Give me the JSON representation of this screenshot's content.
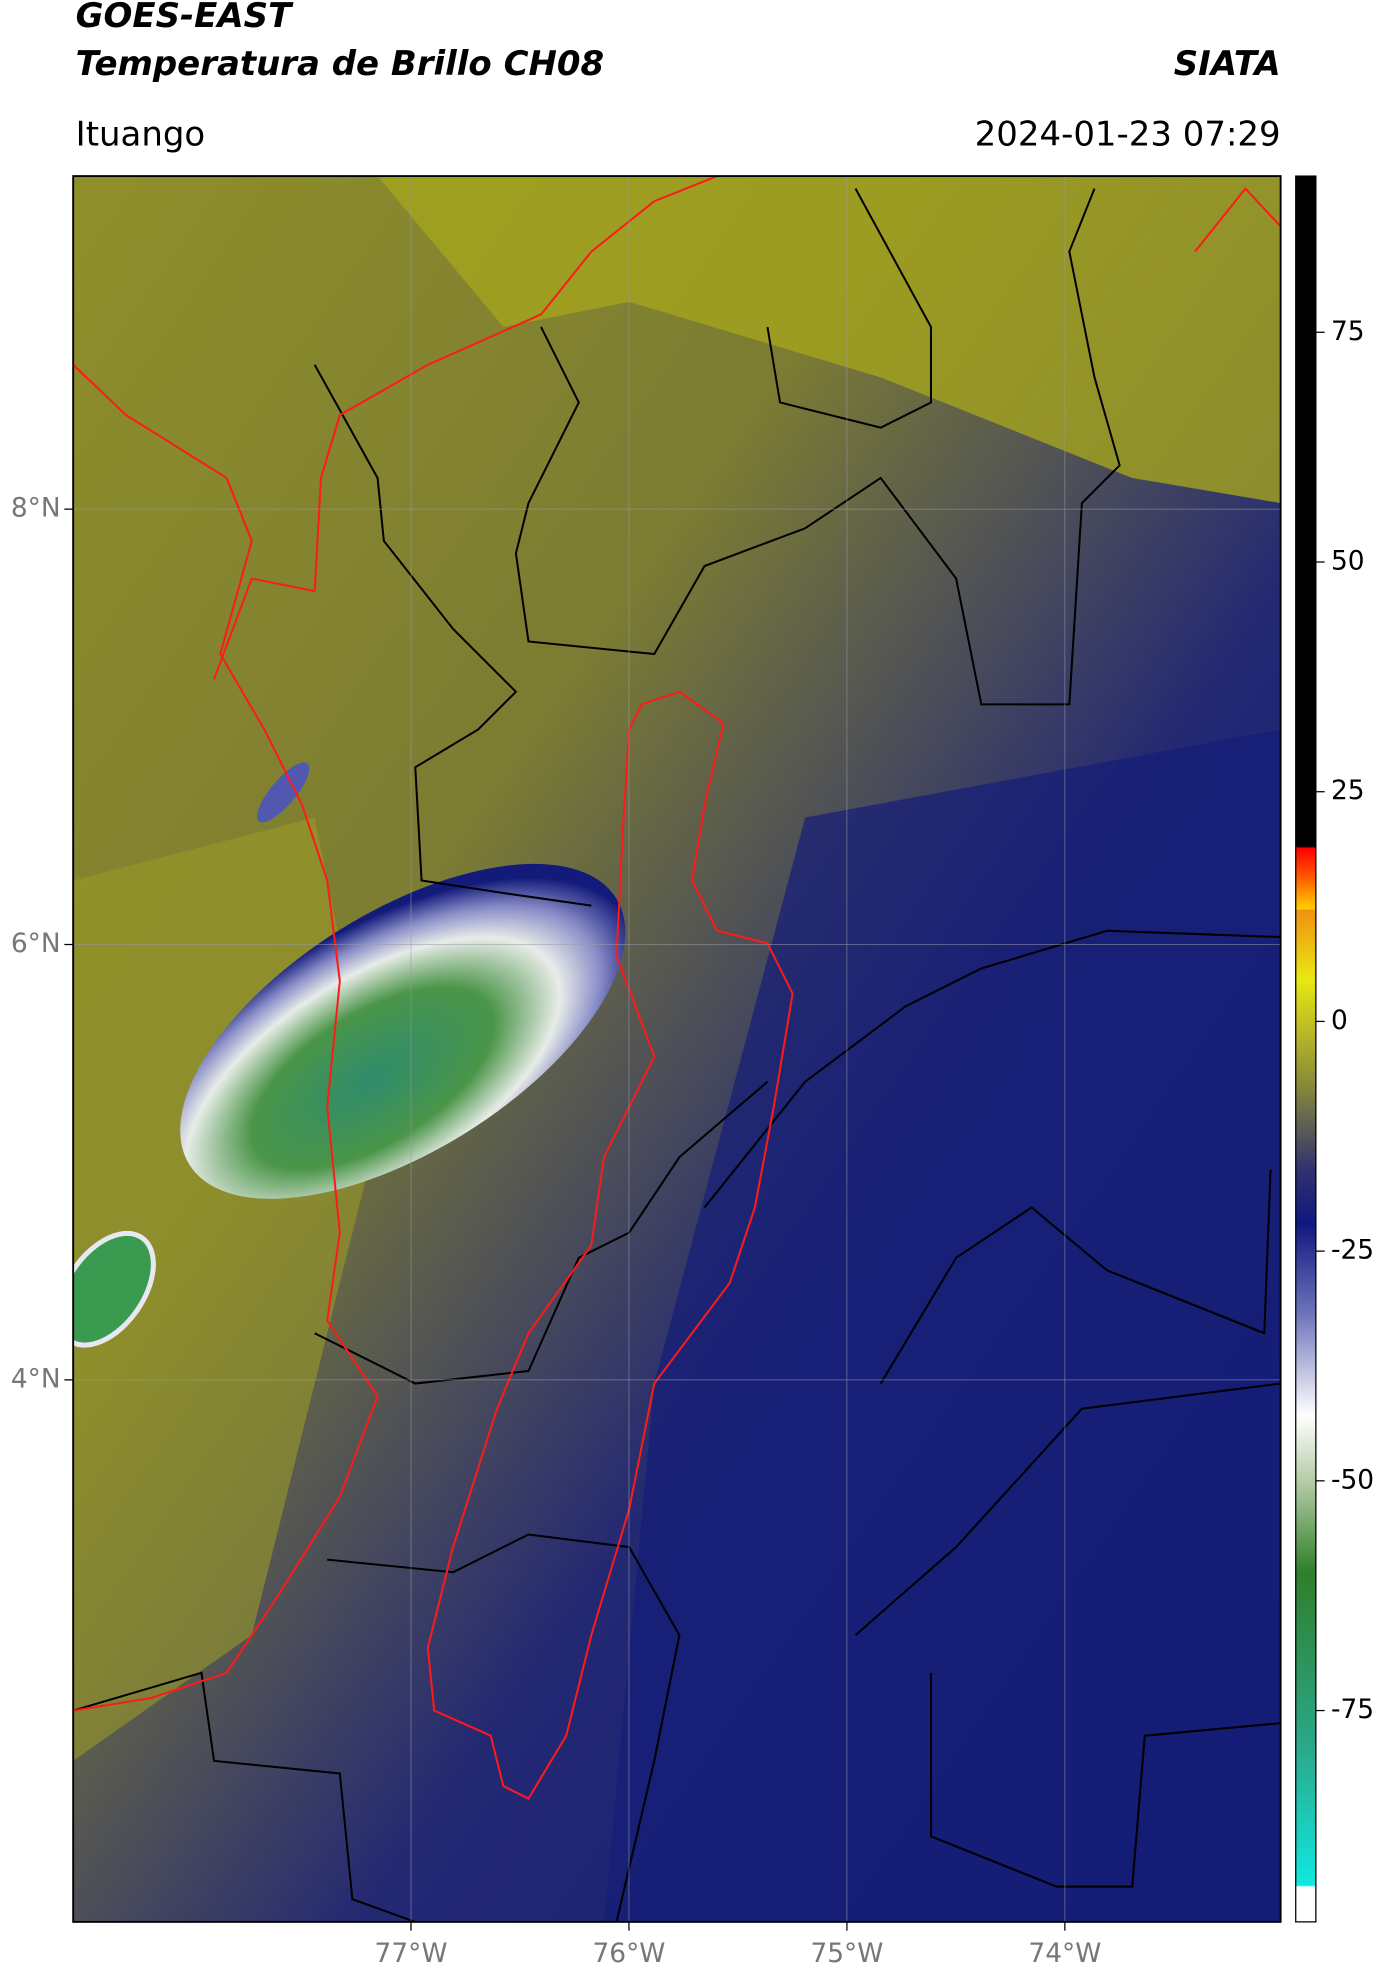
{
  "header": {
    "title": "GOES-EAST",
    "subtitle": "Temperatura de Brillo CH08",
    "brand": "SIATA",
    "location": "Ituango",
    "datetime": "2024-01-23 07:29"
  },
  "chart_data": {
    "type": "map",
    "xlim": [
      -78.55,
      -73.01
    ],
    "ylim": [
      1.51,
      9.53
    ],
    "xticks": [
      {
        "value": -77,
        "label": "77°W"
      },
      {
        "value": -76,
        "label": "76°W"
      },
      {
        "value": -75,
        "label": "75°W"
      },
      {
        "value": -74,
        "label": "74°W"
      }
    ],
    "yticks": [
      {
        "value": 8,
        "label": "8°N"
      },
      {
        "value": 6,
        "label": "6°N"
      },
      {
        "value": 4,
        "label": "4°N"
      }
    ],
    "grid": true,
    "colorbar": {
      "clim": [
        -98,
        92
      ],
      "ticks": [
        75,
        50,
        25,
        0,
        -25,
        -50,
        -75
      ]
    }
  }
}
